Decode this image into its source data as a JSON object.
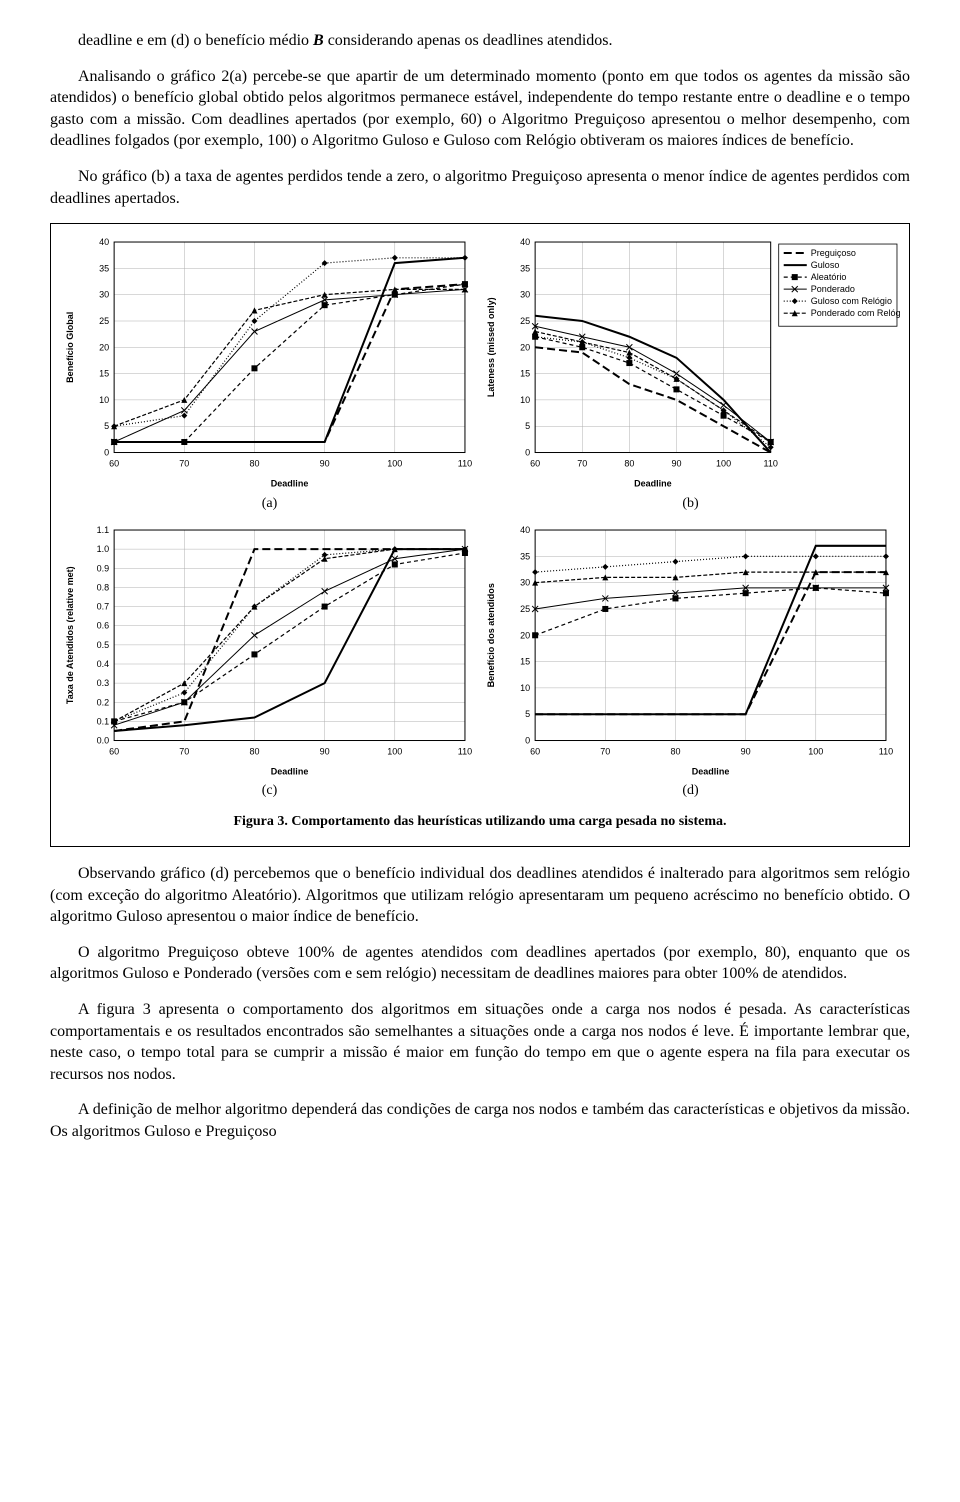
{
  "para1_a": "deadline e em (d) o benefício médio ",
  "para1_b": " considerando apenas os deadlines atendidos.",
  "B": "B",
  "para2": "Analisando o gráfico 2(a) percebe-se que apartir de um determinado momento (ponto em que todos os agentes da missão são atendidos) o benefício global obtido pelos algoritmos permanece estável, independente do tempo restante entre o deadline e o tempo gasto com a missão. Com deadlines apertados (por exemplo, 60) o Algoritmo Preguiçoso apresentou o melhor desempenho, com deadlines folgados (por exemplo, 100) o Algoritmo Guloso e Guloso com Relógio obtiveram os maiores índices de benefício.",
  "para3": "No gráfico (b) a taxa de agentes perdidos tende a zero, o algoritmo Preguiçoso apresenta o menor índice de agentes perdidos com deadlines apertados.",
  "sublabel_a": "(a)",
  "sublabel_b": "(b)",
  "sublabel_c": "(c)",
  "sublabel_d": "(d)",
  "caption": "Figura 3. Comportamento das heurísticas utilizando uma carga pesada no sistema.",
  "para4": "Observando gráfico (d) percebemos que o benefício individual dos deadlines atendidos é inalterado para algoritmos sem relógio (com exceção do algoritmo Aleatório). Algoritmos que utilizam relógio apresentaram um pequeno acréscimo no benefício obtido. O algoritmo Guloso apresentou o maior índice de benefício.",
  "para5": "O algoritmo Preguiçoso obteve 100% de agentes atendidos com deadlines apertados (por exemplo, 80), enquanto que os algoritmos Guloso e Ponderado (versões com e sem relógio) necessitam de deadlines maiores para obter 100% de atendidos.",
  "para6": "A figura 3 apresenta o comportamento dos algoritmos em situações onde a carga nos nodos é pesada. As características comportamentais e os resultados encontrados são semelhantes a situações onde a carga nos nodos é leve. É importante lembrar que, neste caso, o tempo total para se cumprir a missão é maior em função do tempo em que o agente espera na fila para executar os recursos nos nodos.",
  "para7": "A definição de melhor algoritmo dependerá das condições de carga nos nodos e também das características e objetivos da missão. Os algoritmos Guloso e Preguiçoso",
  "axis_deadline": "Deadline",
  "chart_a": {
    "ylabel": "Benefício Global",
    "ylim": [
      0,
      40
    ],
    "ystep": 5,
    "xvals": [
      60,
      70,
      80,
      90,
      100,
      110
    ],
    "series": {
      "preguicoso": [
        2,
        2,
        2,
        2,
        31,
        32
      ],
      "guloso": [
        2,
        2,
        2,
        2,
        36,
        37
      ],
      "aleatorio": [
        2,
        2,
        16,
        28,
        30,
        32
      ],
      "ponderado": [
        2,
        8,
        23,
        29,
        30,
        31
      ],
      "guloso_rel": [
        5,
        7,
        25,
        36,
        37,
        37
      ],
      "ponderado_rel": [
        5,
        10,
        27,
        30,
        31,
        31
      ]
    }
  },
  "chart_b": {
    "ylabel": "Lateness (missed only)",
    "ylim": [
      0,
      40
    ],
    "ystep": 5,
    "xvals": [
      60,
      70,
      80,
      90,
      100,
      110
    ],
    "series": {
      "preguicoso": [
        20,
        19,
        13,
        10,
        5,
        0
      ],
      "guloso": [
        26,
        25,
        22,
        18,
        10,
        0
      ],
      "aleatorio": [
        22,
        20,
        17,
        12,
        7,
        2
      ],
      "ponderado": [
        24,
        22,
        20,
        15,
        9,
        2
      ],
      "guloso_rel": [
        22,
        21,
        18,
        14,
        8,
        1
      ],
      "ponderado_rel": [
        23,
        21,
        19,
        14,
        8,
        2
      ]
    }
  },
  "chart_c": {
    "ylabel": "Taxa de Atendidos (relative met)",
    "ylim": [
      0,
      1.1
    ],
    "ystep": 0.1,
    "xvals": [
      60,
      70,
      80,
      90,
      100,
      110
    ],
    "series": {
      "preguicoso": [
        0.05,
        0.1,
        1.0,
        1.0,
        1.0,
        1.0
      ],
      "guloso": [
        0.05,
        0.08,
        0.12,
        0.3,
        1.0,
        1.0
      ],
      "aleatorio": [
        0.1,
        0.2,
        0.45,
        0.7,
        0.92,
        0.98
      ],
      "ponderado": [
        0.08,
        0.2,
        0.55,
        0.78,
        0.95,
        1.0
      ],
      "guloso_rel": [
        0.1,
        0.25,
        0.7,
        0.97,
        1.0,
        1.0
      ],
      "ponderado_rel": [
        0.1,
        0.3,
        0.7,
        0.95,
        1.0,
        1.0
      ]
    }
  },
  "chart_d": {
    "ylabel": "Benefício dos atendidos",
    "ylim": [
      0,
      40
    ],
    "ystep": 5,
    "xvals": [
      60,
      70,
      80,
      90,
      100,
      110
    ],
    "series": {
      "preguicoso": [
        5,
        5,
        5,
        5,
        32,
        32
      ],
      "guloso": [
        5,
        5,
        5,
        5,
        37,
        37
      ],
      "aleatorio": [
        20,
        25,
        27,
        28,
        29,
        28
      ],
      "ponderado": [
        25,
        27,
        28,
        29,
        29,
        29
      ],
      "guloso_rel": [
        32,
        33,
        34,
        35,
        35,
        35
      ],
      "ponderado_rel": [
        30,
        31,
        31,
        32,
        32,
        32
      ]
    }
  },
  "legend": {
    "preguicoso": "Preguiçoso",
    "guloso": "Guloso",
    "aleatorio": "Aleatório",
    "ponderado": "Ponderado",
    "guloso_rel": "Guloso com Relógio",
    "ponderado_rel": "Ponderado com Relógio"
  },
  "style": {
    "color": "#000000",
    "grid": "#b0b0b0",
    "font_axis": 9,
    "series_style": {
      "preguicoso": {
        "dash": "8,4",
        "w": 2,
        "marker": "none"
      },
      "guloso": {
        "dash": "",
        "w": 2,
        "marker": "none"
      },
      "aleatorio": {
        "dash": "4,3",
        "w": 1.2,
        "marker": "square"
      },
      "ponderado": {
        "dash": "",
        "w": 1,
        "marker": "x"
      },
      "guloso_rel": {
        "dash": "1,2",
        "w": 1.2,
        "marker": "diamond"
      },
      "ponderado_rel": {
        "dash": "4,2",
        "w": 1.2,
        "marker": "triangle"
      }
    }
  }
}
